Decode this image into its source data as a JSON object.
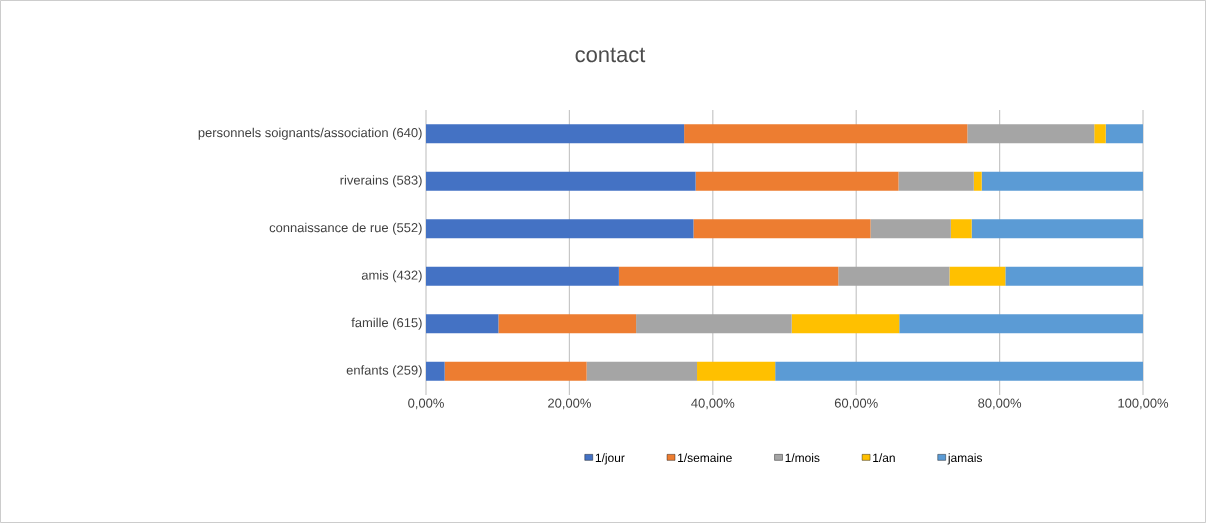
{
  "chart_data": {
    "type": "bar",
    "orientation": "horizontal",
    "stacked": true,
    "title": "contact",
    "categories": [
      "personnels soignants/association (640)",
      "riverains (583)",
      "connaissance de rue (552)",
      "amis (432)",
      "famille (615)",
      "enfants (259)"
    ],
    "series": [
      {
        "name": "1/jour",
        "color": "#4472c4",
        "values": [
          36.0,
          37.6,
          37.3,
          26.9,
          10.1,
          2.6
        ]
      },
      {
        "name": "1/semaine",
        "color": "#ed7d31",
        "values": [
          39.5,
          28.3,
          24.7,
          30.6,
          19.2,
          19.8
        ]
      },
      {
        "name": "1/mois",
        "color": "#a5a5a5",
        "values": [
          17.7,
          10.5,
          11.2,
          15.5,
          21.7,
          15.4
        ]
      },
      {
        "name": "1/an",
        "color": "#ffc000",
        "values": [
          1.6,
          1.1,
          2.9,
          7.8,
          15.0,
          10.9
        ]
      },
      {
        "name": "jamais",
        "color": "#5b9bd5",
        "values": [
          5.2,
          22.5,
          23.9,
          19.2,
          34.0,
          51.3
        ]
      }
    ],
    "xlim": [
      0,
      100
    ],
    "xticks": [
      {
        "value": 0,
        "label": "0,00%"
      },
      {
        "value": 20,
        "label": "20,00%"
      },
      {
        "value": 40,
        "label": "40,00%"
      },
      {
        "value": 60,
        "label": "60,00%"
      },
      {
        "value": 80,
        "label": "80,00%"
      },
      {
        "value": 100,
        "label": "100,00%"
      }
    ],
    "grid": "x",
    "legend": "bottom"
  }
}
